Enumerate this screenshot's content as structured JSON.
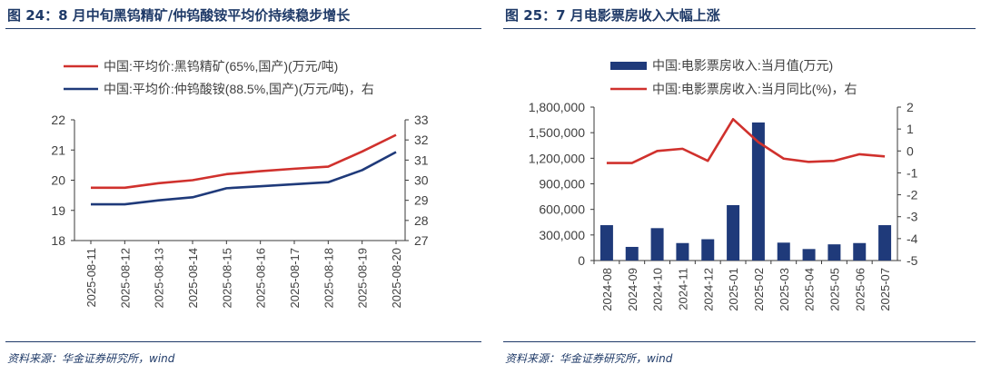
{
  "left": {
    "title": "图 24：8 月中旬黑钨精矿/仲钨酸铵平均价持续稳步增长",
    "source": "资料来源：华金证券研究所，wind"
  },
  "right": {
    "title": "图 25：7 月电影票房收入大幅上涨",
    "source": "资料来源：华金证券研究所，wind"
  },
  "colors": {
    "red": "#d0312d",
    "navy": "#1f3a7a",
    "axis": "#3a3a3a",
    "text": "#404040"
  },
  "chart_data": [
    {
      "type": "line",
      "categories": [
        "2025-08-11",
        "2025-08-12",
        "2025-08-13",
        "2025-08-14",
        "2025-08-15",
        "2025-08-16",
        "2025-08-17",
        "2025-08-18",
        "2025-08-19",
        "2025-08-20"
      ],
      "series": [
        {
          "name": "中国:平均价:黑钨精矿(65%,国产)(万元/吨)",
          "axis": "left",
          "color": "#d0312d",
          "values": [
            19.75,
            19.75,
            19.9,
            20.0,
            20.2,
            20.3,
            20.38,
            20.45,
            20.95,
            21.5
          ]
        },
        {
          "name": "中国:平均价:仲钨酸铵(88.5%,国产)(万元/吨)，右",
          "axis": "right",
          "color": "#1f3a7a",
          "values": [
            28.8,
            28.8,
            29.0,
            29.15,
            29.6,
            29.7,
            29.8,
            29.9,
            30.5,
            31.4
          ]
        }
      ],
      "ylim_left": [
        18,
        22
      ],
      "yticks_left": [
        18,
        19,
        20,
        21,
        22
      ],
      "ylim_right": [
        27,
        33
      ],
      "yticks_right": [
        27,
        28,
        29,
        30,
        31,
        32,
        33
      ],
      "legend": "top-left"
    },
    {
      "type": "bar",
      "categories": [
        "2024-08",
        "2024-09",
        "2024-10",
        "2024-11",
        "2024-12",
        "2025-01",
        "2025-02",
        "2025-03",
        "2025-04",
        "2025-05",
        "2025-06",
        "2025-07"
      ],
      "series": [
        {
          "name": "中国:电影票房收入:当月值(万元)",
          "type": "bar",
          "axis": "left",
          "color": "#1f3a7a",
          "values": [
            415000,
            160000,
            380000,
            205000,
            250000,
            650000,
            1620000,
            210000,
            135000,
            190000,
            205000,
            415000
          ]
        },
        {
          "name": "中国:电影票房收入:当月同比(%)，右",
          "type": "line",
          "axis": "right",
          "color": "#d0312d",
          "values": [
            -0.55,
            -0.55,
            0.0,
            0.1,
            -0.45,
            1.45,
            0.4,
            -0.35,
            -0.5,
            -0.45,
            -0.15,
            -0.25
          ]
        }
      ],
      "ylim_left": [
        0,
        1800000
      ],
      "yticks_left": [
        "0",
        "300,000",
        "600,000",
        "900,000",
        "1,200,000",
        "1,500,000",
        "1,800,000"
      ],
      "ylim_right": [
        -5,
        2
      ],
      "yticks_right": [
        -5,
        -4,
        -3,
        -2,
        -1,
        0,
        1,
        2
      ],
      "legend": "top-left"
    }
  ]
}
